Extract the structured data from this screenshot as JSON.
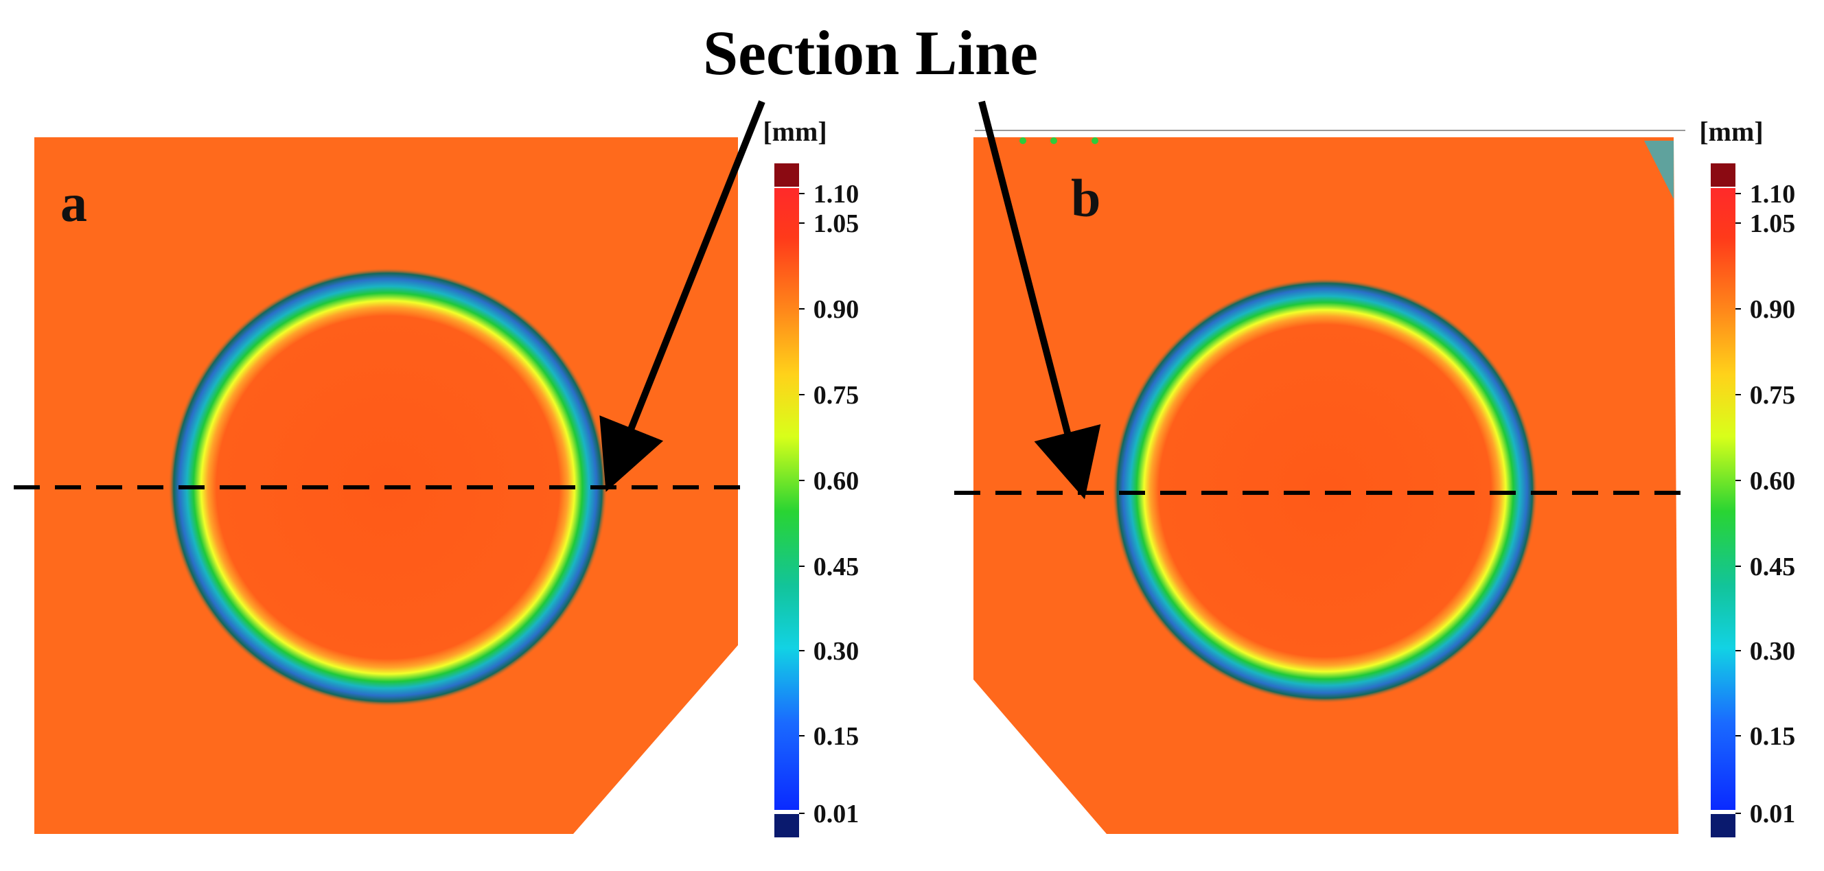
{
  "annotation": {
    "label": "Section Line"
  },
  "panels": [
    {
      "letter": "a",
      "colorbar": {
        "unit": "[mm]",
        "ticks": [
          "1.10",
          "1.05",
          "0.90",
          "0.75",
          "0.60",
          "0.45",
          "0.30",
          "0.15",
          "0.01"
        ]
      }
    },
    {
      "letter": "b",
      "colorbar": {
        "unit": "[mm]",
        "ticks": [
          "1.10",
          "1.05",
          "0.90",
          "0.75",
          "0.60",
          "0.45",
          "0.30",
          "0.15",
          "0.01"
        ]
      }
    }
  ],
  "colors": {
    "background_orange": "#ff6a1c",
    "ring_yellow": "#f2ff2a",
    "ring_green": "#1fc83a",
    "ring_teal": "#1ab5c2",
    "ring_blue": "#2a6fc8",
    "colorbar_top": "#8b0a12",
    "colorbar_bottom": "#0a1a6e"
  }
}
